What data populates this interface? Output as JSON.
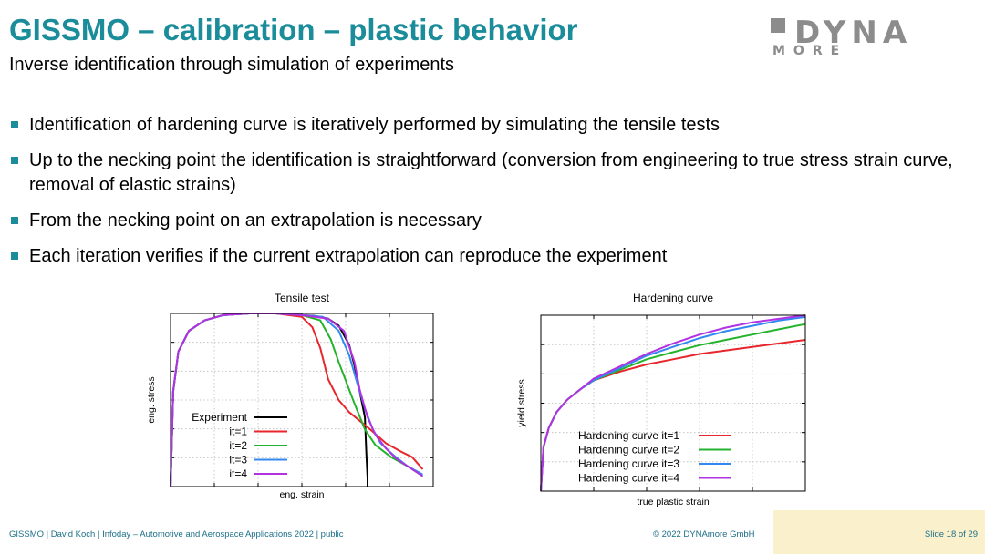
{
  "header": {
    "title": "GISSMO – calibration – plastic behavior",
    "subtitle": "Inverse identification through simulation of experiments"
  },
  "logo": {
    "line1": "DYNA",
    "line2": "MORE"
  },
  "bullets": [
    "Identification of hardening curve is iteratively performed by simulating the tensile tests",
    "Up to the necking point the identification is straightforward (conversion from engineering to true stress strain curve, removal of elastic strains)",
    "From the necking point on an extrapolation is necessary",
    "Each iteration verifies if the current extrapolation can reproduce the experiment"
  ],
  "colors": {
    "accent": "#1b8c9a",
    "experiment": "#000000",
    "it1": "#e8262b",
    "it2": "#23b32c",
    "it3": "#3388f0",
    "it4": "#b232e2"
  },
  "chart_data": [
    {
      "type": "line",
      "title": "Tensile test",
      "xlabel": "eng. strain",
      "ylabel": "eng. stress",
      "xlim": [
        0,
        1
      ],
      "ylim": [
        0,
        1
      ],
      "grid": true,
      "legend": "bottom-left",
      "series": [
        {
          "name": "Experiment",
          "color": "#000000",
          "x": [
            0.0,
            0.01,
            0.03,
            0.07,
            0.13,
            0.2,
            0.3,
            0.4,
            0.5,
            0.55,
            0.6,
            0.64,
            0.68,
            0.7,
            0.72,
            0.74,
            0.745,
            0.75,
            0.75
          ],
          "y": [
            0.0,
            0.55,
            0.78,
            0.9,
            0.96,
            0.99,
            1.0,
            1.0,
            0.99,
            0.985,
            0.97,
            0.93,
            0.82,
            0.7,
            0.55,
            0.4,
            0.2,
            0.05,
            0.0
          ]
        },
        {
          "name": "it=1",
          "color": "#e8262b",
          "x": [
            0.0,
            0.01,
            0.03,
            0.07,
            0.13,
            0.2,
            0.3,
            0.4,
            0.5,
            0.54,
            0.57,
            0.6,
            0.64,
            0.68,
            0.72,
            0.76,
            0.82,
            0.88,
            0.92,
            0.96
          ],
          "y": [
            0.0,
            0.55,
            0.78,
            0.9,
            0.96,
            0.99,
            1.0,
            1.0,
            0.98,
            0.92,
            0.8,
            0.62,
            0.5,
            0.43,
            0.38,
            0.33,
            0.25,
            0.2,
            0.17,
            0.1
          ]
        },
        {
          "name": "it=2",
          "color": "#23b32c",
          "x": [
            0.0,
            0.01,
            0.03,
            0.07,
            0.13,
            0.2,
            0.3,
            0.4,
            0.5,
            0.57,
            0.61,
            0.64,
            0.67,
            0.7,
            0.74,
            0.78,
            0.84,
            0.9,
            0.96
          ],
          "y": [
            0.0,
            0.55,
            0.78,
            0.9,
            0.96,
            0.99,
            1.0,
            1.0,
            0.99,
            0.96,
            0.85,
            0.72,
            0.6,
            0.48,
            0.33,
            0.24,
            0.17,
            0.12,
            0.06
          ]
        },
        {
          "name": "it=3",
          "color": "#3388f0",
          "x": [
            0.0,
            0.01,
            0.03,
            0.07,
            0.13,
            0.2,
            0.3,
            0.4,
            0.5,
            0.58,
            0.64,
            0.68,
            0.71,
            0.74,
            0.77,
            0.8,
            0.85,
            0.9,
            0.96
          ],
          "y": [
            0.0,
            0.55,
            0.78,
            0.9,
            0.96,
            0.99,
            1.0,
            1.0,
            0.99,
            0.98,
            0.9,
            0.76,
            0.6,
            0.45,
            0.33,
            0.25,
            0.18,
            0.12,
            0.07
          ]
        },
        {
          "name": "it=4",
          "color": "#b232e2",
          "x": [
            0.0,
            0.01,
            0.03,
            0.07,
            0.13,
            0.2,
            0.3,
            0.4,
            0.5,
            0.6,
            0.66,
            0.7,
            0.72,
            0.75,
            0.78,
            0.82,
            0.86,
            0.9,
            0.96
          ],
          "y": [
            0.0,
            0.55,
            0.78,
            0.9,
            0.96,
            0.99,
            1.0,
            1.0,
            0.99,
            0.97,
            0.9,
            0.72,
            0.56,
            0.4,
            0.3,
            0.22,
            0.16,
            0.12,
            0.06
          ]
        }
      ]
    },
    {
      "type": "line",
      "title": "Hardening curve",
      "xlabel": "true plastic strain",
      "ylabel": "yield stress",
      "xlim": [
        0,
        1
      ],
      "ylim": [
        0,
        1
      ],
      "grid": true,
      "legend": "bottom-right",
      "series": [
        {
          "name": "Hardening curve it=1",
          "color": "#e8262b",
          "x": [
            0.0,
            0.01,
            0.03,
            0.06,
            0.1,
            0.15,
            0.2,
            0.3,
            0.4,
            0.5,
            0.6,
            0.7,
            0.8,
            0.9,
            1.0
          ],
          "y": [
            0.0,
            0.25,
            0.36,
            0.45,
            0.52,
            0.58,
            0.63,
            0.68,
            0.72,
            0.75,
            0.78,
            0.8,
            0.82,
            0.84,
            0.86
          ]
        },
        {
          "name": "Hardening curve it=2",
          "color": "#23b32c",
          "x": [
            0.0,
            0.01,
            0.03,
            0.06,
            0.1,
            0.15,
            0.2,
            0.3,
            0.4,
            0.5,
            0.6,
            0.7,
            0.8,
            0.9,
            1.0
          ],
          "y": [
            0.0,
            0.25,
            0.36,
            0.45,
            0.52,
            0.58,
            0.63,
            0.69,
            0.75,
            0.79,
            0.83,
            0.86,
            0.89,
            0.92,
            0.95
          ]
        },
        {
          "name": "Hardening curve it=3",
          "color": "#3388f0",
          "x": [
            0.0,
            0.01,
            0.03,
            0.06,
            0.1,
            0.15,
            0.2,
            0.3,
            0.4,
            0.5,
            0.6,
            0.7,
            0.8,
            0.9,
            1.0
          ],
          "y": [
            0.0,
            0.25,
            0.36,
            0.45,
            0.52,
            0.58,
            0.63,
            0.7,
            0.77,
            0.82,
            0.87,
            0.91,
            0.94,
            0.97,
            0.99
          ]
        },
        {
          "name": "Hardening curve it=4",
          "color": "#b232e2",
          "x": [
            0.0,
            0.01,
            0.03,
            0.06,
            0.1,
            0.15,
            0.2,
            0.3,
            0.4,
            0.5,
            0.6,
            0.7,
            0.8,
            0.9,
            1.0
          ],
          "y": [
            0.0,
            0.25,
            0.36,
            0.45,
            0.52,
            0.58,
            0.64,
            0.71,
            0.78,
            0.84,
            0.89,
            0.93,
            0.96,
            0.98,
            1.0
          ]
        }
      ]
    }
  ],
  "footer": {
    "left": "GISSMO | David Koch | Infoday – Automotive and Aerospace Applications 2022 | public",
    "center": "© 2022 DYNAmore GmbH",
    "right": "Slide 18 of 29"
  }
}
